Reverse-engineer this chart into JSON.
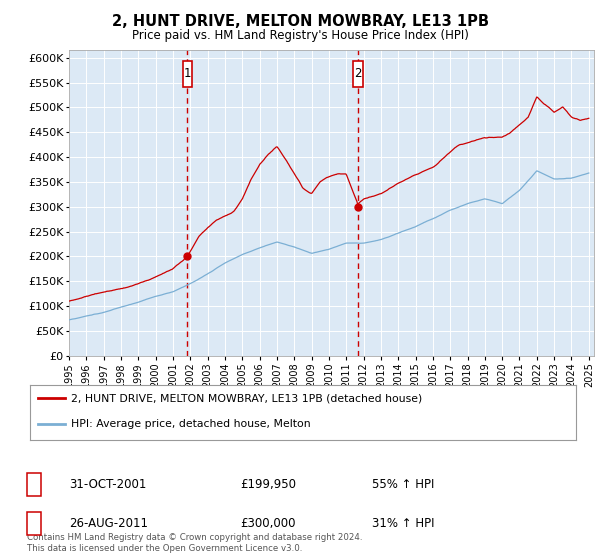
{
  "title": "2, HUNT DRIVE, MELTON MOWBRAY, LE13 1PB",
  "subtitle": "Price paid vs. HM Land Registry's House Price Index (HPI)",
  "ylabel_ticks": [
    "£0",
    "£50K",
    "£100K",
    "£150K",
    "£200K",
    "£250K",
    "£300K",
    "£350K",
    "£400K",
    "£450K",
    "£500K",
    "£550K",
    "£600K"
  ],
  "ytick_vals": [
    0,
    50000,
    100000,
    150000,
    200000,
    250000,
    300000,
    350000,
    400000,
    450000,
    500000,
    550000,
    600000
  ],
  "ylim": [
    0,
    615000
  ],
  "background_color": "#dce9f5",
  "line1_color": "#cc0000",
  "line2_color": "#7bafd4",
  "vline_color": "#cc0000",
  "sale1_price": 199950,
  "sale2_price": 300000,
  "sale1_label": "1",
  "sale2_label": "2",
  "sale1_date_str": "31-OCT-2001",
  "sale2_date_str": "26-AUG-2011",
  "sale1_pct": "55% ↑ HPI",
  "sale2_pct": "31% ↑ HPI",
  "legend_line1": "2, HUNT DRIVE, MELTON MOWBRAY, LE13 1PB (detached house)",
  "legend_line2": "HPI: Average price, detached house, Melton",
  "footer": "Contains HM Land Registry data © Crown copyright and database right 2024.\nThis data is licensed under the Open Government Licence v3.0.",
  "sale1_x": 2001.833,
  "sale2_x": 2011.667,
  "hpi_keys_x": [
    1995,
    1996,
    1997,
    1998,
    1999,
    2000,
    2001,
    2002,
    2003,
    2004,
    2005,
    2006,
    2007,
    2008,
    2009,
    2010,
    2011,
    2012,
    2013,
    2014,
    2015,
    2016,
    2017,
    2018,
    2019,
    2020,
    2021,
    2022,
    2023,
    2024,
    2025
  ],
  "hpi_keys_y": [
    72000,
    80000,
    88000,
    98000,
    108000,
    120000,
    128000,
    145000,
    165000,
    188000,
    205000,
    218000,
    230000,
    220000,
    207000,
    215000,
    228000,
    228000,
    235000,
    248000,
    262000,
    278000,
    295000,
    308000,
    318000,
    308000,
    335000,
    375000,
    358000,
    360000,
    370000
  ],
  "red_keys_x": [
    1995,
    1997,
    1998.5,
    1999.5,
    2001,
    2001.833,
    2002.5,
    2003.5,
    2004.5,
    2005,
    2005.5,
    2006,
    2006.5,
    2007,
    2007.5,
    2008,
    2008.5,
    2009,
    2009.5,
    2010,
    2010.5,
    2011,
    2011.667,
    2012,
    2013,
    2014,
    2015,
    2016,
    2016.5,
    2017,
    2017.5,
    2018,
    2019,
    2020,
    2020.5,
    2021,
    2021.5,
    2022,
    2022.3,
    2022.7,
    2023,
    2023.5,
    2024,
    2024.5,
    2025
  ],
  "red_keys_y": [
    110000,
    128000,
    140000,
    152000,
    175000,
    200000,
    240000,
    270000,
    285000,
    310000,
    350000,
    380000,
    400000,
    415000,
    390000,
    360000,
    330000,
    320000,
    345000,
    355000,
    360000,
    360000,
    300000,
    310000,
    320000,
    340000,
    355000,
    370000,
    385000,
    400000,
    415000,
    420000,
    430000,
    430000,
    440000,
    455000,
    470000,
    510000,
    500000,
    490000,
    480000,
    490000,
    470000,
    465000,
    470000
  ]
}
